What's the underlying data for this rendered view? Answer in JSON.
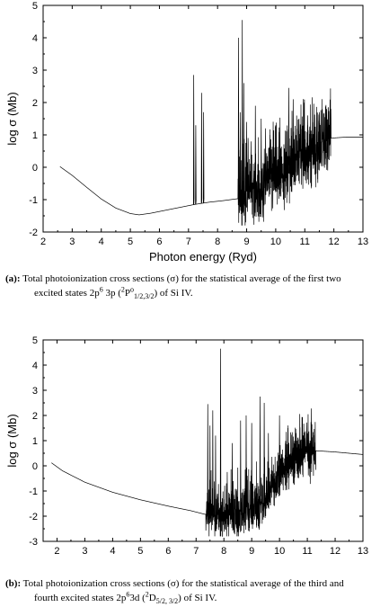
{
  "chart_data": [
    {
      "type": "line",
      "xlabel": "Photon energy (Ryd)",
      "ylabel": "log σ (Mb)",
      "xlim": [
        2,
        13
      ],
      "ylim": [
        -2,
        5
      ],
      "xticks": [
        2,
        3,
        4,
        5,
        6,
        7,
        8,
        9,
        10,
        11,
        12,
        13
      ],
      "yticks": [
        -2,
        -1,
        0,
        1,
        2,
        3,
        4,
        5
      ],
      "grid": false,
      "series": [
        {
          "background": [
            [
              2.58,
              0.02
            ],
            [
              3.0,
              -0.25
            ],
            [
              3.5,
              -0.62
            ],
            [
              4.0,
              -0.98
            ],
            [
              4.5,
              -1.26
            ],
            [
              5.0,
              -1.43
            ],
            [
              5.3,
              -1.47
            ],
            [
              5.7,
              -1.42
            ],
            [
              6.2,
              -1.33
            ],
            [
              6.7,
              -1.24
            ],
            [
              7.2,
              -1.15
            ],
            [
              7.7,
              -1.08
            ],
            [
              8.2,
              -1.03
            ],
            [
              8.7,
              -0.97
            ],
            [
              9.2,
              -0.78
            ],
            [
              9.8,
              -0.45
            ],
            [
              10.4,
              -0.1
            ],
            [
              11.0,
              0.35
            ],
            [
              11.6,
              0.72
            ],
            [
              11.9,
              0.9
            ],
            [
              12.4,
              0.93
            ],
            [
              13.0,
              0.93
            ]
          ],
          "resonances": [
            [
              7.18,
              2.85
            ],
            [
              7.25,
              1.3
            ],
            [
              7.45,
              2.3
            ],
            [
              7.52,
              1.7
            ],
            [
              8.72,
              4.0
            ],
            [
              8.85,
              4.55
            ],
            [
              8.78,
              1.7
            ],
            [
              8.9,
              2.6
            ],
            [
              9.0,
              1.4
            ],
            [
              9.15,
              0.8
            ],
            [
              9.3,
              1.9
            ],
            [
              9.5,
              1.5
            ],
            [
              9.65,
              1.2
            ],
            [
              9.8,
              1.0
            ],
            [
              10.0,
              1.3
            ],
            [
              10.45,
              2.45
            ],
            [
              10.6,
              2.1
            ],
            [
              10.8,
              1.5
            ],
            [
              11.1,
              1.6
            ],
            [
              11.5,
              1.7
            ],
            [
              11.75,
              1.8
            ]
          ],
          "dense_region": [
            8.7,
            11.9
          ]
        }
      ]
    },
    {
      "type": "line",
      "xlabel": "Photon energy (Ryd)",
      "ylabel": "log σ (Mb)",
      "xlim": [
        1.5,
        13
      ],
      "ylim": [
        -3,
        5
      ],
      "xticks": [
        2,
        3,
        4,
        5,
        6,
        7,
        8,
        9,
        10,
        11,
        12,
        13
      ],
      "yticks": [
        -3,
        -2,
        -1,
        0,
        1,
        2,
        3,
        4,
        5
      ],
      "grid": false,
      "series": [
        {
          "background": [
            [
              1.8,
              0.12
            ],
            [
              2.2,
              -0.2
            ],
            [
              3.0,
              -0.65
            ],
            [
              4.0,
              -1.05
            ],
            [
              5.0,
              -1.35
            ],
            [
              6.0,
              -1.6
            ],
            [
              6.8,
              -1.78
            ],
            [
              7.3,
              -1.92
            ],
            [
              7.5,
              -1.95
            ],
            [
              8.0,
              -1.9
            ],
            [
              8.5,
              -1.85
            ],
            [
              9.0,
              -1.75
            ],
            [
              9.5,
              -1.2
            ],
            [
              10.0,
              -0.4
            ],
            [
              10.5,
              0.2
            ],
            [
              11.0,
              0.5
            ],
            [
              11.3,
              0.6
            ],
            [
              12.0,
              0.55
            ],
            [
              13.0,
              0.45
            ]
          ],
          "resonances": [
            [
              7.42,
              2.45
            ],
            [
              7.5,
              1.6
            ],
            [
              7.6,
              2.2
            ],
            [
              7.88,
              4.65
            ],
            [
              7.7,
              1.2
            ],
            [
              8.3,
              0.9
            ],
            [
              8.6,
              1.8
            ],
            [
              8.8,
              2.0
            ],
            [
              9.0,
              1.7
            ],
            [
              9.3,
              2.75
            ],
            [
              9.45,
              2.5
            ],
            [
              9.6,
              1.3
            ],
            [
              10.0,
              2.0
            ],
            [
              10.3,
              1.5
            ],
            [
              10.6,
              1.3
            ],
            [
              10.9,
              1.1
            ],
            [
              11.1,
              1.0
            ]
          ],
          "dense_region": [
            7.35,
            11.3
          ]
        }
      ]
    }
  ],
  "captions": [
    {
      "label": "(a):",
      "line1_text": "Total photoionization cross sections (σ) for the statistical average of the first two",
      "line2_pre": "excited states 2p",
      "line2_sup1": "6",
      "line2_mid": " 3p (",
      "line2_sup2": "2",
      "line2_P": "P",
      "line2_sup3": "o",
      "line2_sub": "1/2,3/2",
      "line2_post": ") of Si IV."
    },
    {
      "label": "(b):",
      "line1_text": "Total photoionization cross sections (σ) for the statistical average of the third and",
      "line2_pre": "fourth excited states 2p",
      "line2_sup1": "6",
      "line2_mid": "3d (",
      "line2_sup2": "2",
      "line2_D": "D",
      "line2_sub": "5/2, 3/2",
      "line2_post": ") of Si IV."
    }
  ]
}
